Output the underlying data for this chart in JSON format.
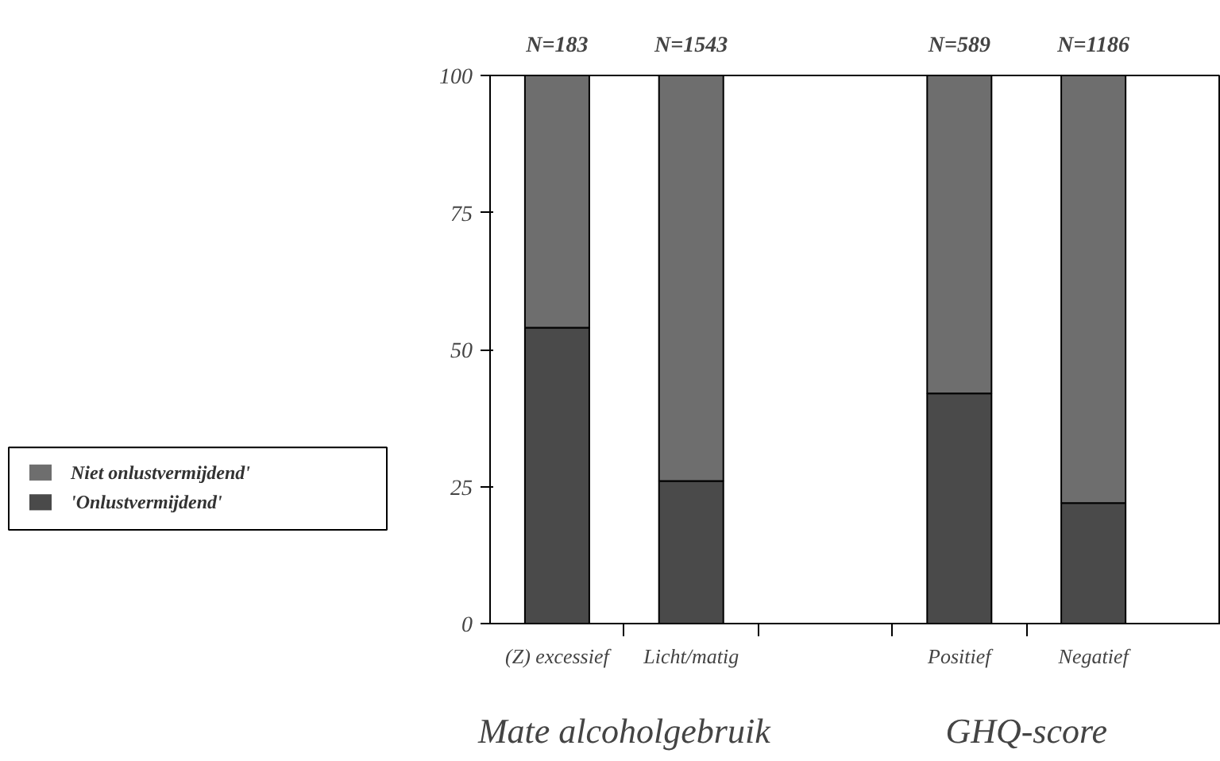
{
  "chart_data": {
    "type": "bar",
    "stacked": true,
    "categories": [
      "(Z) excessief",
      "Licht/matig",
      null,
      "Positief",
      "Negatief"
    ],
    "series": [
      {
        "name": "'Onlustvermijdend'",
        "color": "#4a4a4a",
        "values": [
          54,
          26,
          null,
          42,
          22
        ]
      },
      {
        "name": "Niet onlustvermijdend'",
        "color": "#6e6e6e",
        "values": [
          46,
          74,
          null,
          58,
          78
        ]
      }
    ],
    "ylim": [
      0,
      100
    ],
    "yticks": [
      0,
      25,
      50,
      75,
      100
    ],
    "grid": false,
    "legend": "bottom left",
    "annotations": [
      "N=183",
      "N=1543",
      "N=589",
      "N=1186",
      "Mate alcoholgebruik",
      "GHQ-score"
    ]
  }
}
